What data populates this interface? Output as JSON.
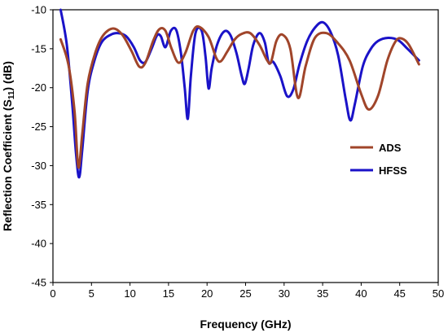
{
  "chart_data": {
    "type": "line",
    "xlabel": "Frequency (GHz)",
    "ylabel_parts": [
      "Reflection Coefficient (S",
      "11",
      ") (dB)"
    ],
    "xlim": [
      0,
      50
    ],
    "ylim": [
      -45,
      -10
    ],
    "xticks": [
      0,
      5,
      10,
      15,
      20,
      25,
      30,
      35,
      40,
      45,
      50
    ],
    "yticks": [
      -10,
      -15,
      -20,
      -25,
      -30,
      -35,
      -40,
      -45
    ],
    "grid": false,
    "legend_position": "right",
    "series": [
      {
        "name": "ADS",
        "color": "#a0452a",
        "points": [
          [
            1.0,
            -13.8
          ],
          [
            2.0,
            -17.0
          ],
          [
            2.8,
            -23.0
          ],
          [
            3.3,
            -30.2
          ],
          [
            3.8,
            -26.0
          ],
          [
            4.5,
            -19.5
          ],
          [
            5.5,
            -15.5
          ],
          [
            6.5,
            -13.3
          ],
          [
            7.8,
            -12.4
          ],
          [
            9.0,
            -13.2
          ],
          [
            10.2,
            -15.3
          ],
          [
            11.2,
            -17.3
          ],
          [
            12.0,
            -16.8
          ],
          [
            13.0,
            -14.0
          ],
          [
            13.8,
            -12.5
          ],
          [
            14.6,
            -12.7
          ],
          [
            15.4,
            -15.0
          ],
          [
            16.3,
            -16.8
          ],
          [
            17.2,
            -15.5
          ],
          [
            18.2,
            -12.7
          ],
          [
            19.0,
            -12.2
          ],
          [
            20.2,
            -13.5
          ],
          [
            21.2,
            -16.2
          ],
          [
            21.8,
            -16.6
          ],
          [
            22.6,
            -15.4
          ],
          [
            23.6,
            -13.8
          ],
          [
            24.5,
            -13.1
          ],
          [
            25.6,
            -13.0
          ],
          [
            26.8,
            -14.5
          ],
          [
            27.8,
            -16.5
          ],
          [
            28.3,
            -16.7
          ],
          [
            29.0,
            -14.0
          ],
          [
            29.8,
            -13.2
          ],
          [
            30.8,
            -15.0
          ],
          [
            31.8,
            -21.3
          ],
          [
            32.8,
            -17.2
          ],
          [
            34.0,
            -13.6
          ],
          [
            35.5,
            -13.0
          ],
          [
            37.0,
            -14.3
          ],
          [
            38.5,
            -16.5
          ],
          [
            40.0,
            -20.8
          ],
          [
            41.0,
            -22.8
          ],
          [
            42.2,
            -21.0
          ],
          [
            43.4,
            -16.5
          ],
          [
            44.5,
            -14.0
          ],
          [
            45.3,
            -13.7
          ],
          [
            46.2,
            -14.5
          ],
          [
            47.5,
            -17.0
          ]
        ]
      },
      {
        "name": "HFSS",
        "color": "#1a12c8",
        "points": [
          [
            1.0,
            -10.0
          ],
          [
            1.8,
            -14.5
          ],
          [
            2.5,
            -22.0
          ],
          [
            3.0,
            -28.5
          ],
          [
            3.4,
            -31.5
          ],
          [
            3.8,
            -28.0
          ],
          [
            4.5,
            -20.5
          ],
          [
            5.3,
            -16.8
          ],
          [
            6.3,
            -14.2
          ],
          [
            7.5,
            -13.2
          ],
          [
            8.5,
            -13.0
          ],
          [
            9.5,
            -13.4
          ],
          [
            10.5,
            -14.8
          ],
          [
            11.3,
            -16.5
          ],
          [
            12.0,
            -16.7
          ],
          [
            12.8,
            -15.0
          ],
          [
            13.5,
            -13.3
          ],
          [
            14.0,
            -13.4
          ],
          [
            14.6,
            -14.8
          ],
          [
            15.3,
            -12.7
          ],
          [
            16.0,
            -12.6
          ],
          [
            16.6,
            -15.5
          ],
          [
            17.1,
            -20.0
          ],
          [
            17.5,
            -24.0
          ],
          [
            17.9,
            -18.5
          ],
          [
            18.5,
            -13.0
          ],
          [
            19.3,
            -12.7
          ],
          [
            19.8,
            -16.0
          ],
          [
            20.2,
            -20.1
          ],
          [
            20.6,
            -17.5
          ],
          [
            21.3,
            -14.5
          ],
          [
            22.2,
            -12.8
          ],
          [
            23.0,
            -13.2
          ],
          [
            23.8,
            -15.5
          ],
          [
            24.5,
            -18.5
          ],
          [
            24.9,
            -19.5
          ],
          [
            25.4,
            -17.5
          ],
          [
            26.0,
            -14.5
          ],
          [
            26.8,
            -13.0
          ],
          [
            27.5,
            -14.2
          ],
          [
            28.0,
            -16.8
          ],
          [
            28.6,
            -16.7
          ],
          [
            29.5,
            -18.5
          ],
          [
            30.4,
            -21.1
          ],
          [
            31.2,
            -20.2
          ],
          [
            32.0,
            -17.0
          ],
          [
            33.0,
            -14.0
          ],
          [
            34.0,
            -12.3
          ],
          [
            35.0,
            -11.6
          ],
          [
            36.0,
            -12.8
          ],
          [
            37.0,
            -15.8
          ],
          [
            38.0,
            -21.5
          ],
          [
            38.6,
            -24.2
          ],
          [
            39.2,
            -22.0
          ],
          [
            40.2,
            -17.3
          ],
          [
            41.2,
            -15.1
          ],
          [
            42.2,
            -14.0
          ],
          [
            43.5,
            -13.6
          ],
          [
            44.8,
            -13.9
          ],
          [
            46.0,
            -15.0
          ],
          [
            47.5,
            -16.5
          ]
        ]
      }
    ]
  }
}
